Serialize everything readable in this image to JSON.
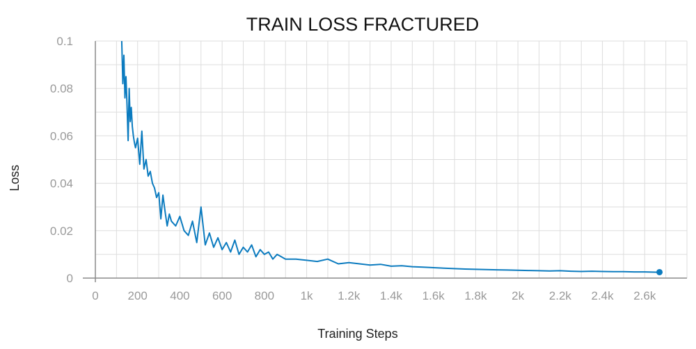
{
  "chart_data": {
    "type": "line",
    "title": "TRAIN LOSS FRACTURED",
    "xlabel": "Training Steps",
    "ylabel": "Loss",
    "xlim": [
      0,
      2800
    ],
    "ylim": [
      0,
      0.1
    ],
    "grid": true,
    "x_ticks": [
      {
        "value": 0,
        "label": "0"
      },
      {
        "value": 200,
        "label": "200"
      },
      {
        "value": 400,
        "label": "400"
      },
      {
        "value": 600,
        "label": "600"
      },
      {
        "value": 800,
        "label": "800"
      },
      {
        "value": 1000,
        "label": "1k"
      },
      {
        "value": 1200,
        "label": "1.2k"
      },
      {
        "value": 1400,
        "label": "1.4k"
      },
      {
        "value": 1600,
        "label": "1.6k"
      },
      {
        "value": 1800,
        "label": "1.8k"
      },
      {
        "value": 2000,
        "label": "2k"
      },
      {
        "value": 2200,
        "label": "2.2k"
      },
      {
        "value": 2400,
        "label": "2.4k"
      },
      {
        "value": 2600,
        "label": "2.6k"
      }
    ],
    "y_ticks": [
      {
        "value": 0,
        "label": "0"
      },
      {
        "value": 0.02,
        "label": "0.02"
      },
      {
        "value": 0.04,
        "label": "0.04"
      },
      {
        "value": 0.06,
        "label": "0.06"
      },
      {
        "value": 0.08,
        "label": "0.08"
      },
      {
        "value": 0.1,
        "label": "0.1"
      }
    ],
    "series": [
      {
        "color": "#0b7bbf",
        "x": [
          125,
          130,
          135,
          140,
          145,
          150,
          155,
          160,
          165,
          170,
          175,
          180,
          185,
          190,
          200,
          210,
          220,
          230,
          240,
          250,
          260,
          270,
          280,
          290,
          300,
          310,
          320,
          330,
          340,
          350,
          360,
          380,
          400,
          420,
          440,
          460,
          480,
          500,
          520,
          540,
          560,
          580,
          600,
          620,
          640,
          660,
          680,
          700,
          720,
          740,
          760,
          780,
          800,
          820,
          840,
          860,
          880,
          900,
          950,
          1000,
          1050,
          1100,
          1150,
          1200,
          1250,
          1300,
          1350,
          1400,
          1450,
          1500,
          1550,
          1600,
          1650,
          1700,
          1750,
          1800,
          1850,
          1900,
          1950,
          2000,
          2050,
          2100,
          2150,
          2200,
          2250,
          2300,
          2350,
          2400,
          2450,
          2500,
          2550,
          2600,
          2650,
          2670
        ],
        "y": [
          0.1,
          0.082,
          0.094,
          0.076,
          0.085,
          0.073,
          0.058,
          0.08,
          0.066,
          0.072,
          0.064,
          0.06,
          0.057,
          0.055,
          0.059,
          0.048,
          0.062,
          0.046,
          0.05,
          0.043,
          0.045,
          0.04,
          0.038,
          0.034,
          0.036,
          0.025,
          0.035,
          0.028,
          0.022,
          0.027,
          0.024,
          0.022,
          0.026,
          0.02,
          0.018,
          0.024,
          0.015,
          0.03,
          0.014,
          0.019,
          0.013,
          0.017,
          0.012,
          0.015,
          0.011,
          0.016,
          0.01,
          0.013,
          0.011,
          0.014,
          0.009,
          0.012,
          0.01,
          0.011,
          0.008,
          0.01,
          0.009,
          0.008,
          0.008,
          0.0075,
          0.007,
          0.008,
          0.006,
          0.0065,
          0.006,
          0.0055,
          0.0058,
          0.005,
          0.0052,
          0.0048,
          0.0046,
          0.0044,
          0.0042,
          0.004,
          0.0038,
          0.0037,
          0.0036,
          0.0035,
          0.0034,
          0.0033,
          0.0032,
          0.0031,
          0.003,
          0.0031,
          0.0029,
          0.0028,
          0.0029,
          0.0028,
          0.0027,
          0.0027,
          0.0026,
          0.0026,
          0.0025,
          0.0025
        ]
      }
    ]
  }
}
